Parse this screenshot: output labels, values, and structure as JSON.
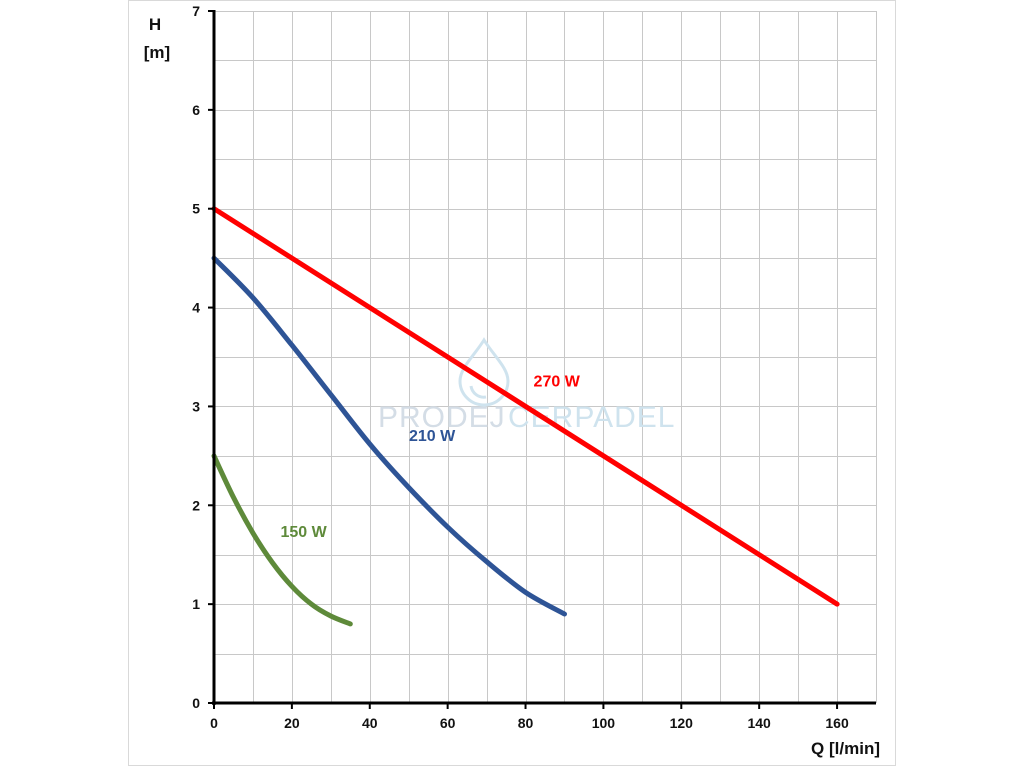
{
  "chart_data": {
    "type": "line",
    "title": "",
    "xlabel": "Q [l/min]",
    "ylabel_line1": "H",
    "ylabel_line2": "[m]",
    "xlim": [
      0,
      170
    ],
    "ylim": [
      0,
      7
    ],
    "xticks": [
      0,
      20,
      40,
      60,
      80,
      100,
      120,
      140,
      160
    ],
    "yticks": [
      0,
      1,
      2,
      3,
      4,
      5,
      6,
      7
    ],
    "x_minor_step": 10,
    "y_minor_step": 0.5,
    "grid": true,
    "legend": "none",
    "series": [
      {
        "name": "270 W",
        "color": "#ff0000",
        "label_at": [
          88,
          3.2
        ],
        "x": [
          0,
          160
        ],
        "y": [
          5.0,
          1.0
        ]
      },
      {
        "name": "210 W",
        "color": "#2e5496",
        "label_at": [
          56,
          2.65
        ],
        "x": [
          0,
          10,
          20,
          30,
          40,
          50,
          60,
          70,
          80,
          90
        ],
        "y": [
          4.5,
          4.1,
          3.62,
          3.12,
          2.62,
          2.18,
          1.78,
          1.43,
          1.12,
          0.9
        ]
      },
      {
        "name": "150 W",
        "color": "#5e8a3a",
        "label_at": [
          23,
          1.68
        ],
        "x": [
          0,
          5,
          10,
          15,
          20,
          25,
          30,
          35
        ],
        "y": [
          2.5,
          2.08,
          1.72,
          1.42,
          1.18,
          1.0,
          0.88,
          0.8
        ]
      }
    ]
  },
  "watermark": {
    "text_left": "PRODEJ",
    "text_right": "CERPADEL",
    "icon": "water-drop-icon"
  }
}
